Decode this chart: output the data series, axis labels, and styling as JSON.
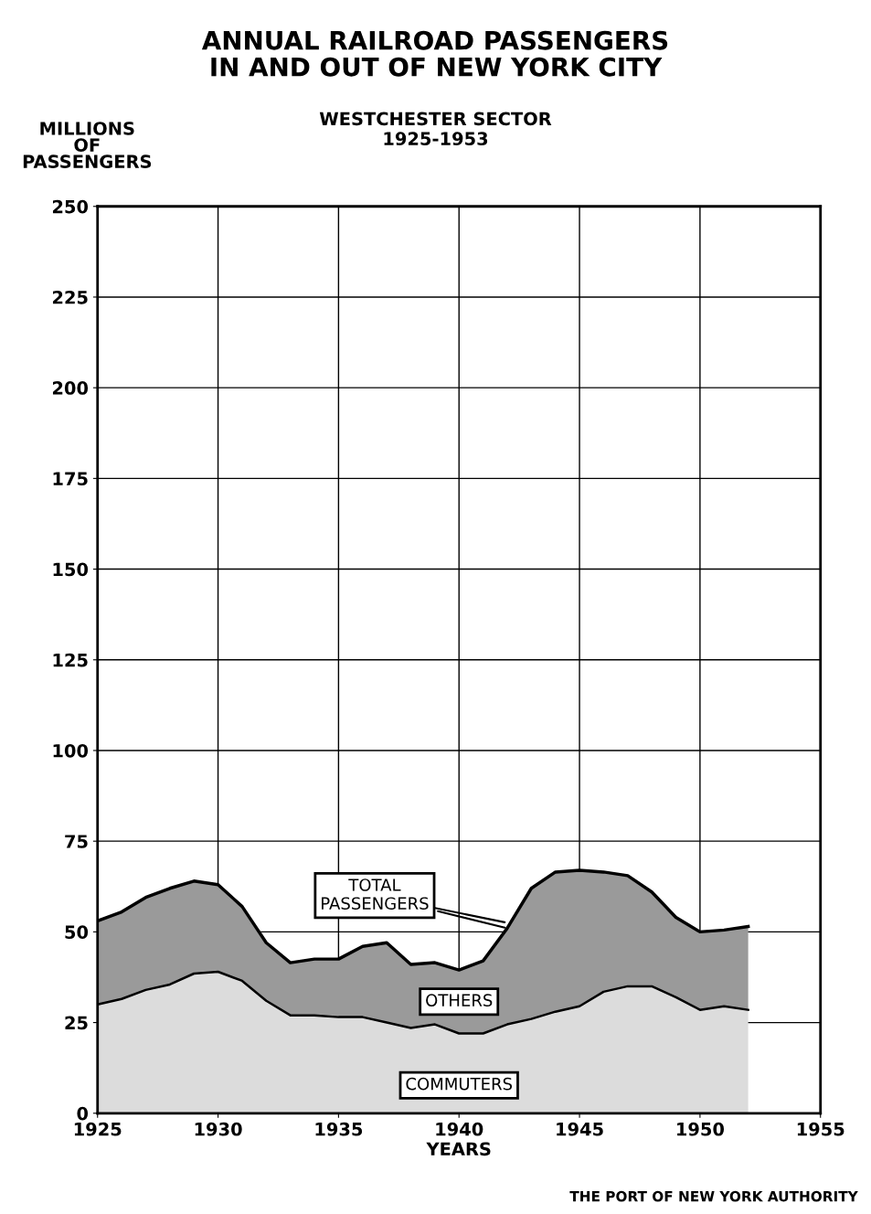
{
  "chart_data": {
    "type": "area",
    "title": "ANNUAL RAILROAD PASSENGERS\nIN AND OUT OF NEW YORK CITY",
    "subtitle": "WESTCHESTER SECTOR\n1925-1953",
    "xlabel": "YEARS",
    "ylabel": "MILLIONS\nOF\nPASSENGERS",
    "stacked": true,
    "x": [
      1925,
      1926,
      1927,
      1928,
      1929,
      1930,
      1931,
      1932,
      1933,
      1934,
      1935,
      1936,
      1937,
      1938,
      1939,
      1940,
      1941,
      1942,
      1943,
      1944,
      1945,
      1946,
      1947,
      1948,
      1949,
      1950,
      1951,
      1952
    ],
    "series": [
      {
        "name": "COMMUTERS",
        "color": "#dcdcdc",
        "values": [
          30,
          31.5,
          34,
          35.5,
          38.5,
          39,
          36.5,
          31,
          27,
          27,
          26.5,
          26.5,
          25,
          23.5,
          24.5,
          22,
          22,
          24.5,
          26,
          28,
          29.5,
          33.5,
          35,
          35,
          32,
          28.5,
          29.5,
          28.5
        ]
      },
      {
        "name": "OTHERS",
        "color": "#9a9a9a",
        "values": [
          23,
          24,
          25.5,
          26.5,
          25.5,
          24,
          20.5,
          16,
          14.5,
          15.5,
          16,
          19.5,
          22,
          17.5,
          17,
          17.5,
          20,
          26.5,
          36,
          38.5,
          37.5,
          33,
          30.5,
          26,
          22,
          21.5,
          21,
          23
        ]
      }
    ],
    "xlim": [
      1925,
      1955
    ],
    "xticks": [
      1925,
      1930,
      1935,
      1940,
      1945,
      1950,
      1955
    ],
    "ylim": [
      0,
      250
    ],
    "yticks": [
      0,
      25,
      50,
      75,
      100,
      125,
      150,
      175,
      200,
      225,
      250
    ],
    "grid": true,
    "legend": false,
    "annotations": [
      {
        "text": "TOTAL\nPASSENGERS",
        "x": 1942,
        "y": 51
      },
      "THE PORT OF NEW YORK AUTHORITY"
    ]
  }
}
